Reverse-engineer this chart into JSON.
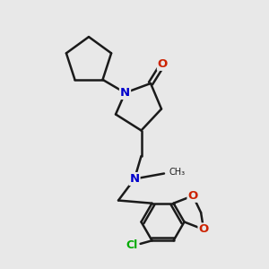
{
  "background_color": "#e8e8e8",
  "bond_color": "#1a1a1a",
  "atom_colors": {
    "N": "#0000cc",
    "O": "#cc2200",
    "Cl": "#00aa00",
    "C": "#1a1a1a"
  },
  "figsize": [
    3.0,
    3.0
  ],
  "dpi": 100
}
